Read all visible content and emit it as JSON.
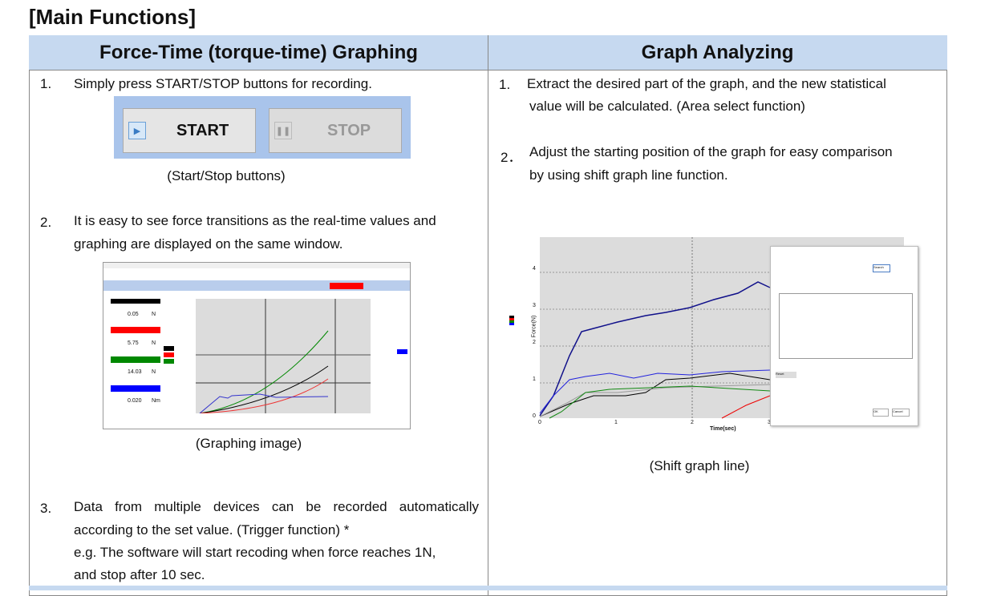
{
  "title": "[Main Functions]",
  "columns": [
    "Force-Time (torque-time) Graphing",
    "Graph Analyzing"
  ],
  "left": {
    "items": [
      {
        "num": "1.",
        "lines": [
          "Simply press START/STOP buttons for recording."
        ]
      },
      {
        "num": "2.",
        "lines": [
          "It is easy to see force transitions as the real-time values and",
          "graphing are displayed on the same window."
        ]
      },
      {
        "num": "3.",
        "lines": [
          "Data from multiple devices can be recorded automatically",
          "according to the set value. (Trigger function) *",
          "e.g. The software will start recoding when force reaches 1N,",
          "and stop after 10 sec."
        ]
      }
    ],
    "start_label": "START",
    "stop_label": "STOP",
    "caption1": "(Start/Stop buttons)",
    "caption2": "(Graphing image)",
    "graph_values": [
      "0.05",
      "5.75",
      "14.03",
      "0.020"
    ],
    "graph_units": [
      "N",
      "N",
      "N",
      "Nm"
    ]
  },
  "right": {
    "items": [
      {
        "num": "1.",
        "lines": [
          "Extract the desired part of the graph, and the new statistical",
          "value will be calculated. (Area select function)"
        ]
      },
      {
        "num": "2．",
        "lines": [
          "Adjust the starting position of the graph for easy comparison",
          "by using shift graph line function."
        ]
      }
    ],
    "caption": "(Shift graph line)",
    "ylabel": "Force(N)",
    "xlabel": "Time(sec)",
    "yticks": [
      "0",
      "1",
      "2",
      "3",
      "4"
    ],
    "xticks": [
      "0",
      "1",
      "2",
      "3"
    ],
    "dialog": {
      "search": "Search",
      "reset": "Reset",
      "ok": "OK",
      "cancel": "Cancel"
    }
  },
  "colors": {
    "header": "#c6d9f0",
    "button_panel": "#a9c4eb",
    "stop_red": "#ff0000"
  }
}
